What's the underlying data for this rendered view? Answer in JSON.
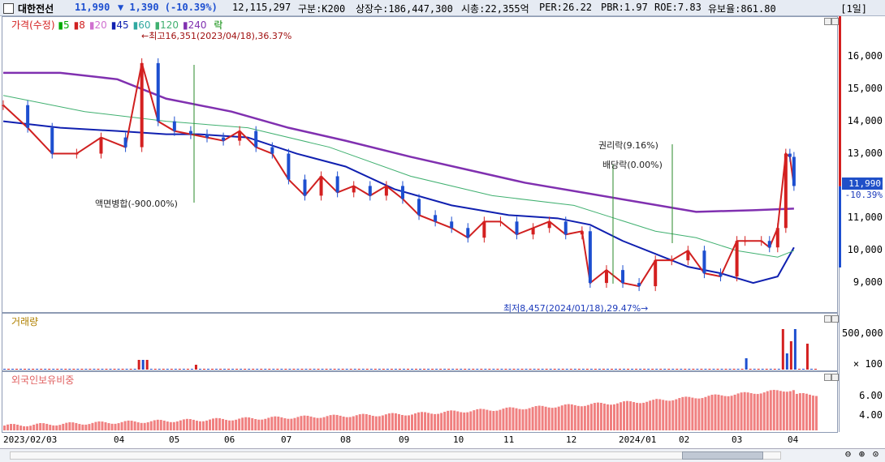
{
  "header": {
    "name": "대한전선",
    "price": "11,990",
    "change": "▼ 1,390 (-10.39%)",
    "volume": "12,115,297",
    "market": "구분:K200",
    "shares": "상장수:186,447,300",
    "mcap": "시총:22,355억",
    "per": "PER:26.22",
    "pbr": "PBR:1.97",
    "roe": "ROE:7.83",
    "float": "유보율:861.80",
    "period": "[1일]"
  },
  "legend": {
    "price_label": "가격(수정)",
    "ma": [
      {
        "label": "5",
        "color": "#00aa00"
      },
      {
        "label": "8",
        "color": "#d02020"
      },
      {
        "label": "20",
        "color": "#d070d0"
      },
      {
        "label": "45",
        "color": "#1020b0"
      },
      {
        "label": "60",
        "color": "#30a8a0"
      },
      {
        "label": "120",
        "color": "#40b070"
      },
      {
        "label": "240",
        "color": "#8030b0"
      }
    ],
    "extra_label": "락",
    "volume_label": "거래량",
    "foreign_label": "외국인보유비중"
  },
  "annotations": {
    "high": "←최고16,351(2023/04/18),36.37%",
    "split": "액면병합(-900.00%)",
    "rights": "권리락(9.16%)",
    "dividend": "배당락(0.00%)",
    "low": "최저8,457(2024/01/18),29.47%→"
  },
  "last_price": {
    "value": "11,990",
    "pct": "-10.39%"
  },
  "colors": {
    "up": "#d42020",
    "down": "#1d4fd0",
    "ma240": "#8030b0",
    "ma45": "#1020b0",
    "ma8": "#d02020",
    "ma5": "#00aa00",
    "ma20": "#d070d0",
    "ma120": "#40b070",
    "foreign_bar": "#f08080"
  },
  "chart_data": {
    "type": "line",
    "price": {
      "yticks": [
        "16,000",
        "15,000",
        "14,000",
        "13,000",
        "12,000",
        "11,000",
        "10,000",
        "9,000"
      ],
      "ytick_values": [
        16000,
        15000,
        14000,
        13000,
        12000,
        11000,
        10000,
        9000
      ],
      "ylim": [
        8100,
        17000
      ],
      "high": 16351,
      "low": 8457,
      "last": 11990,
      "series": [
        {
          "name": "240",
          "color": "#8030b0",
          "x": [
            0,
            0.07,
            0.14,
            0.2,
            0.28,
            0.35,
            0.42,
            0.5,
            0.57,
            0.64,
            0.71,
            0.78,
            0.85,
            0.92,
            0.97
          ],
          "values": [
            15500,
            15500,
            15300,
            14700,
            14300,
            13800,
            13400,
            12900,
            12500,
            12100,
            11800,
            11500,
            11200,
            11250,
            11300
          ]
        },
        {
          "name": "45",
          "color": "#1020b0",
          "x": [
            0,
            0.07,
            0.14,
            0.2,
            0.24,
            0.3,
            0.36,
            0.42,
            0.48,
            0.55,
            0.62,
            0.68,
            0.72,
            0.76,
            0.8,
            0.84,
            0.88,
            0.92,
            0.95,
            0.97
          ],
          "values": [
            14000,
            13800,
            13700,
            13600,
            13600,
            13500,
            13000,
            12600,
            11900,
            11400,
            11100,
            11000,
            10800,
            10300,
            9900,
            9500,
            9300,
            9000,
            9200,
            10100
          ]
        },
        {
          "name": "120",
          "color": "#40b070",
          "x": [
            0,
            0.1,
            0.2,
            0.3,
            0.4,
            0.5,
            0.6,
            0.7,
            0.75,
            0.8,
            0.85,
            0.9,
            0.95,
            0.97
          ],
          "values": [
            14800,
            14300,
            14000,
            13800,
            13200,
            12300,
            11700,
            11400,
            11000,
            10600,
            10400,
            10000,
            9800,
            10000
          ]
        }
      ],
      "candles": {
        "x": [
          0,
          0.03,
          0.06,
          0.09,
          0.12,
          0.15,
          0.17,
          0.19,
          0.21,
          0.23,
          0.25,
          0.27,
          0.29,
          0.31,
          0.33,
          0.35,
          0.37,
          0.39,
          0.41,
          0.43,
          0.45,
          0.47,
          0.49,
          0.51,
          0.53,
          0.55,
          0.57,
          0.59,
          0.61,
          0.63,
          0.65,
          0.67,
          0.69,
          0.71,
          0.72,
          0.74,
          0.76,
          0.78,
          0.8,
          0.82,
          0.84,
          0.86,
          0.88,
          0.9,
          0.91,
          0.93,
          0.94,
          0.95,
          0.96,
          0.965,
          0.97
        ],
        "values": [
          14500,
          13800,
          13000,
          13000,
          13500,
          13200,
          15800,
          14000,
          13700,
          13600,
          13500,
          13400,
          13700,
          13200,
          13000,
          12200,
          11700,
          12300,
          11800,
          12000,
          11700,
          12000,
          11600,
          11100,
          10900,
          10700,
          10400,
          10900,
          10900,
          10500,
          10700,
          10900,
          10500,
          10600,
          9000,
          9400,
          9000,
          8900,
          9700,
          9700,
          10000,
          9300,
          9200,
          10300,
          10300,
          10300,
          10100,
          10700,
          13000,
          12900,
          12000
        ]
      }
    },
    "volume": {
      "ytick_labels": [
        "500,000",
        "100"
      ],
      "ytick_values": [
        500000,
        100
      ]
    },
    "foreign": {
      "ytick_labels": [
        "6.00",
        "4.00"
      ],
      "ytick_values": [
        6.0,
        4.0
      ]
    },
    "x_labels": [
      "2023/02/03",
      "04",
      "05",
      "06",
      "07",
      "08",
      "09",
      "10",
      "11",
      "12",
      "2024/01",
      "02",
      "03",
      "04"
    ]
  }
}
